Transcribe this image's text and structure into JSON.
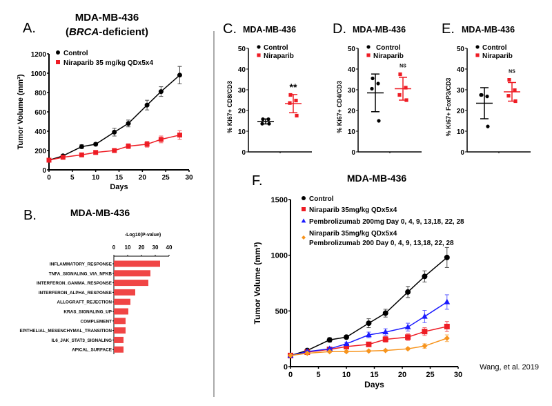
{
  "colors": {
    "control": "#000000",
    "niraparib": "#ee1c24",
    "pembrolizumab": "#1a1aff",
    "combination": "#f7941d",
    "bar": "#f04545",
    "divider": "#555555",
    "credit": "#555555"
  },
  "credit": "Wang, et al. 2019",
  "chart_data": [
    {
      "id": "A",
      "type": "line",
      "panel": "A.",
      "title": "MDA-MB-436",
      "subtitle": "(BRCA-deficient)",
      "subtitle_italic": "BRCA",
      "xlabel": "Days",
      "ylabel": "Tumor Volume (mm³)",
      "xlim": [
        0,
        30
      ],
      "ylim": [
        0,
        1200
      ],
      "xticks": [
        0,
        5,
        10,
        15,
        20,
        25,
        30
      ],
      "yticks": [
        0,
        200,
        400,
        600,
        800,
        1000,
        1200
      ],
      "legend": "top-left",
      "grid": false,
      "x": [
        0,
        3,
        7,
        10,
        14,
        17,
        21,
        24,
        28
      ],
      "series": [
        {
          "name": "Control",
          "color": "#000000",
          "marker": "circle",
          "values": [
            100,
            145,
            240,
            265,
            390,
            480,
            670,
            810,
            980
          ],
          "errors": [
            0,
            10,
            20,
            15,
            40,
            35,
            50,
            50,
            90
          ]
        },
        {
          "name": "Niraparib 35 mg/kg QDx5x4",
          "color": "#ee1c24",
          "marker": "square",
          "values": [
            100,
            130,
            155,
            180,
            200,
            245,
            265,
            315,
            360
          ],
          "errors": [
            0,
            10,
            12,
            12,
            12,
            25,
            30,
            35,
            45
          ]
        }
      ]
    },
    {
      "id": "B",
      "type": "bar",
      "orientation": "horizontal",
      "panel": "B.",
      "title": "MDA-MB-436",
      "xlabel": "-Log10(P-value)",
      "xlim": [
        0,
        40
      ],
      "xticks": [
        0,
        10,
        20,
        30,
        40
      ],
      "axis_position": "top",
      "categories": [
        "INFLAMMATORY_RESPONSE",
        "TNFA_SIGNALING_VIA_NFKB",
        "INTERFERON_GAMMA_RESPONSE",
        "INTERFERON_ALPHA_RESPONSE",
        "ALLOGRAFT_REJECTION",
        "KRAS_SIGNALING_UP",
        "COMPLEMENT",
        "EPITHELIAL_MESENCHYMAL_TRANSITION",
        "IL6_JAK_STAT3_SIGNALING",
        "APICAL_SURFACE"
      ],
      "values": [
        33.5,
        26.5,
        25,
        15.5,
        12,
        10.5,
        8.5,
        8.5,
        7,
        7
      ]
    },
    {
      "id": "C",
      "type": "scatter",
      "panel": "C.",
      "title": "MDA-MB-436",
      "ylabel": "% Ki67+ CD8/CD3",
      "ylim": [
        0,
        50
      ],
      "yticks": [
        0,
        10,
        20,
        30,
        40,
        50
      ],
      "legend": "top-left",
      "groups": [
        {
          "name": "Control",
          "color": "#000000",
          "marker": "circle",
          "values": [
            15.8,
            15.8,
            13.6,
            13.6
          ],
          "mean": 14.7,
          "sd": 1.2
        },
        {
          "name": "Niraparib",
          "color": "#ee1c24",
          "marker": "square",
          "values": [
            27.5,
            24.8,
            23.6,
            17.5
          ],
          "mean": 23.3,
          "sd": 4.4
        }
      ],
      "annotation": "**"
    },
    {
      "id": "D",
      "type": "scatter",
      "panel": "D.",
      "title": "MDA-MB-436",
      "ylabel": "% Ki67+ CD4/CD3",
      "ylim": [
        0,
        50
      ],
      "yticks": [
        0,
        10,
        20,
        30,
        40,
        50
      ],
      "legend": "top-left",
      "groups": [
        {
          "name": "Control",
          "color": "#000000",
          "marker": "circle",
          "values": [
            35.5,
            33,
            30.5,
            15
          ],
          "mean": 28.5,
          "sd": 9.1
        },
        {
          "name": "Niraparib",
          "color": "#ee1c24",
          "marker": "square",
          "values": [
            37.5,
            31,
            27.5,
            25
          ],
          "mean": 30.5,
          "sd": 5.5
        }
      ],
      "annotation": "NS"
    },
    {
      "id": "E",
      "type": "scatter",
      "panel": "E.",
      "title": "MDA-MB-436",
      "ylabel": "% Ki67+ FoxP3/CD3",
      "ylim": [
        0,
        50
      ],
      "yticks": [
        0,
        10,
        20,
        30,
        40,
        50
      ],
      "legend": "top-left",
      "groups": [
        {
          "name": "Control",
          "color": "#000000",
          "marker": "circle",
          "values": [
            27.5,
            26.8,
            27.5,
            12.3
          ],
          "mean": 23.5,
          "sd": 7.5
        },
        {
          "name": "Niraparib",
          "color": "#ee1c24",
          "marker": "square",
          "values": [
            34.8,
            29.8,
            27.1,
            24.5
          ],
          "mean": 29,
          "sd": 4.5
        }
      ],
      "annotation": "NS"
    },
    {
      "id": "F",
      "type": "line",
      "panel": "F.",
      "title": "MDA-MB-436",
      "xlabel": "Days",
      "ylabel": "Tumor Volume (mm³)",
      "xlim": [
        0,
        30
      ],
      "ylim": [
        0,
        1500
      ],
      "xticks": [
        0,
        5,
        10,
        15,
        20,
        25,
        30
      ],
      "yticks": [
        0,
        500,
        1000,
        1500
      ],
      "legend": "top-left",
      "grid": false,
      "x": [
        0,
        3,
        7,
        10,
        14,
        17,
        21,
        24,
        28
      ],
      "series": [
        {
          "name": "Control",
          "color": "#000000",
          "marker": "circle",
          "values": [
            100,
            145,
            240,
            265,
            390,
            480,
            670,
            810,
            980
          ],
          "errors": [
            0,
            10,
            20,
            15,
            40,
            35,
            50,
            50,
            90
          ]
        },
        {
          "name": "Niraparib 35mg/kg QDx5x4",
          "color": "#ee1c24",
          "marker": "square",
          "values": [
            100,
            130,
            155,
            180,
            200,
            245,
            265,
            315,
            360
          ],
          "errors": [
            0,
            10,
            12,
            12,
            12,
            25,
            30,
            35,
            45
          ]
        },
        {
          "name": "Pembrolizumab 200mg Day 0, 4, 9, 13,18, 22, 28",
          "color": "#1a1aff",
          "marker": "triangle",
          "values": [
            100,
            135,
            160,
            205,
            285,
            310,
            355,
            450,
            580
          ],
          "errors": [
            0,
            10,
            12,
            12,
            25,
            30,
            35,
            55,
            65
          ]
        },
        {
          "name": "Niraparib 35mg/kg QDx5x4",
          "name_line2": "Pembrolizumab 200 Day 0, 4, 9, 13,18, 22, 28",
          "color": "#f7941d",
          "marker": "diamond",
          "values": [
            100,
            120,
            135,
            135,
            140,
            145,
            160,
            185,
            255
          ],
          "errors": [
            0,
            8,
            8,
            8,
            8,
            8,
            10,
            20,
            30
          ]
        }
      ]
    }
  ]
}
